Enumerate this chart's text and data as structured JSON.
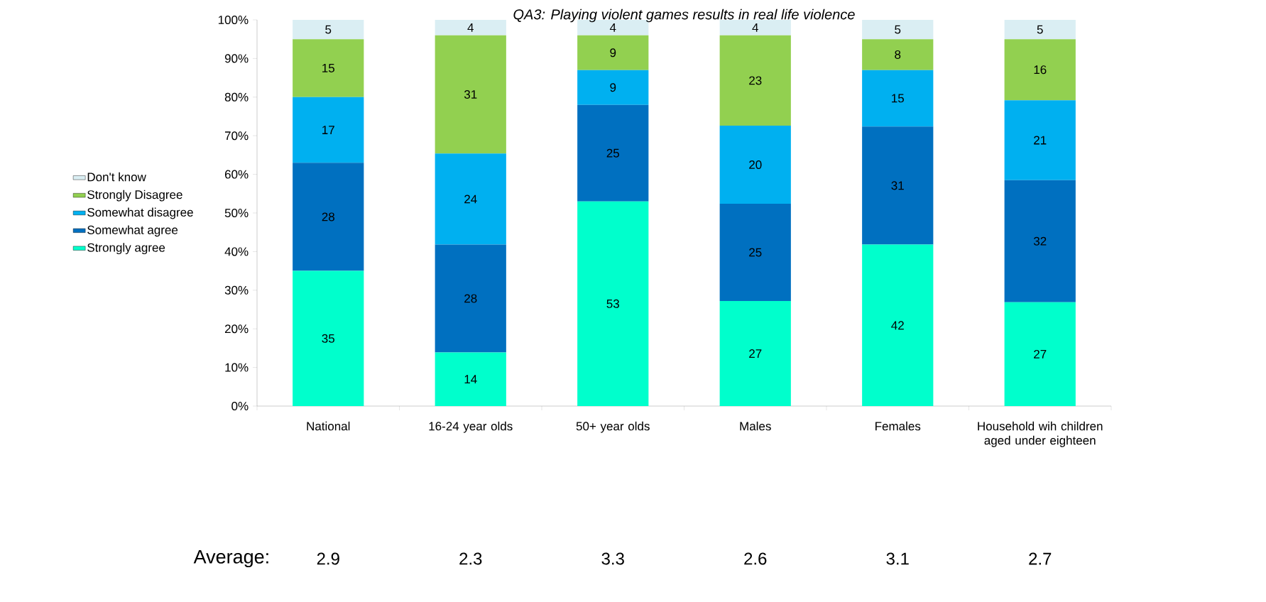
{
  "chart_data": {
    "type": "bar",
    "stacked": true,
    "title": "QA3: Playing violent games results in real life violence",
    "categories": [
      "National",
      "16-24 year olds",
      "50+ year olds",
      "Males",
      "Females",
      "Household wih children aged under eighteen"
    ],
    "series": [
      {
        "name": "Strongly agree",
        "color": "#00ffcc",
        "values": [
          35,
          13.9,
          53,
          27.2,
          41.8,
          26.9
        ],
        "value_labels": [
          "35",
          "14",
          "53",
          "27",
          "42",
          "27"
        ]
      },
      {
        "name": "Somewhat agree",
        "color": "#0070c0",
        "values": [
          28,
          27.9,
          25,
          25.2,
          30.6,
          31.6
        ],
        "value_labels": [
          "28",
          "28",
          "25",
          "25",
          "31",
          "32"
        ]
      },
      {
        "name": "Somewhat disagree",
        "color": "#00b0f0",
        "values": [
          17,
          23.6,
          9,
          20.2,
          14.6,
          20.7
        ],
        "value_labels": [
          "17",
          "24",
          "9",
          "20",
          "15",
          "21"
        ]
      },
      {
        "name": "Strongly Disagree",
        "color": "#92d050",
        "values": [
          15,
          30.6,
          9,
          23.4,
          8.0,
          15.8
        ],
        "value_labels": [
          "15",
          "31",
          "9",
          "23",
          "8",
          "16"
        ]
      },
      {
        "name": "Don't know",
        "color": "#daeef3",
        "values": [
          5,
          4.0,
          4,
          4.0,
          5.0,
          5.0
        ],
        "value_labels": [
          "5",
          "4",
          "4",
          "4",
          "5",
          "5"
        ]
      }
    ],
    "ylim": [
      0,
      100
    ],
    "yticks": [
      {
        "value": 0,
        "label": "0%"
      },
      {
        "value": 10,
        "label": "10%"
      },
      {
        "value": 20,
        "label": "20%"
      },
      {
        "value": 30,
        "label": "30%"
      },
      {
        "value": 40,
        "label": "40%"
      },
      {
        "value": 50,
        "label": "50%"
      },
      {
        "value": 60,
        "label": "60%"
      },
      {
        "value": 70,
        "label": "70%"
      },
      {
        "value": 80,
        "label": "80%"
      },
      {
        "value": 90,
        "label": "90%"
      },
      {
        "value": 100,
        "label": "100%"
      }
    ],
    "legend": "left",
    "annotations": [
      "Average:",
      "2.9",
      "2.3",
      "3.3",
      "2.6",
      "3.1",
      "2.7"
    ]
  }
}
